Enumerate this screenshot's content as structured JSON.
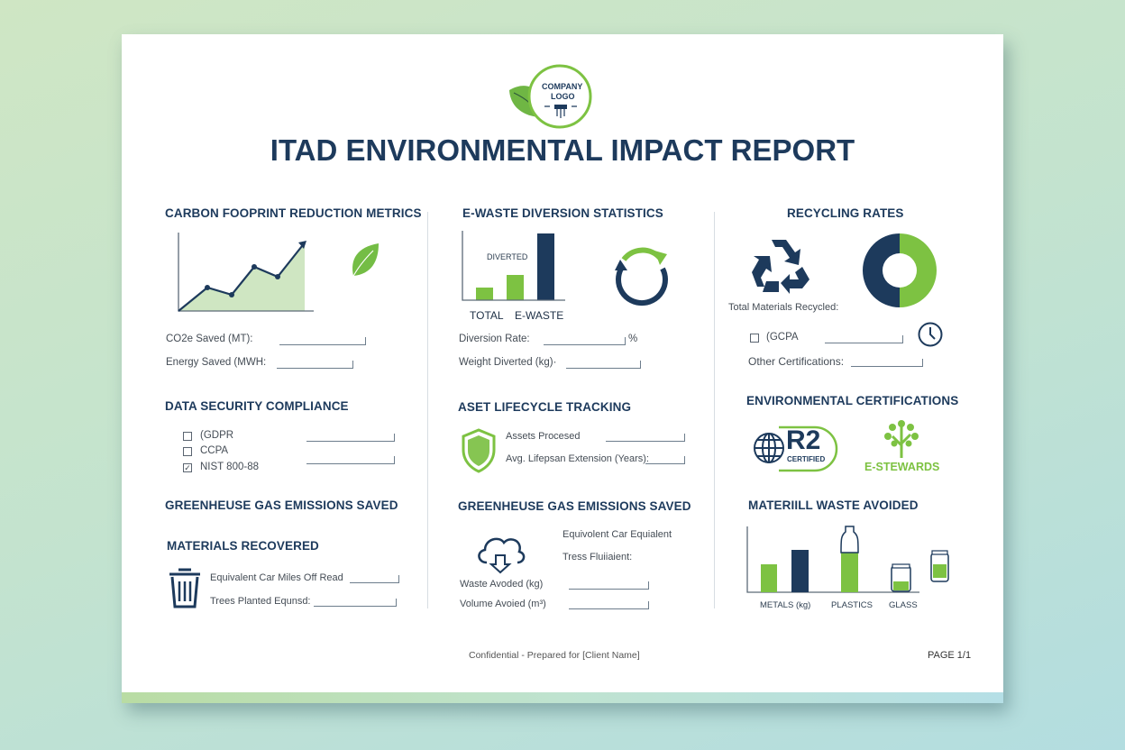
{
  "title": "ITAD ENVIRONMENTAL IMPACT REPORT",
  "logo": {
    "text_line1": "COMPANY",
    "text_line2": "LOGO"
  },
  "colors": {
    "navy": "#1d3a5c",
    "green": "#7dc242"
  },
  "col1": {
    "carbon": {
      "heading": "CARBON FOOPRINT REDUCTION METRICS",
      "co2_label": "CO2e Saved (MT):",
      "energy_label": "Energy Saved (MWH:"
    },
    "security": {
      "heading": "DATA SECURITY COMPLIANCE",
      "items": [
        {
          "label": "(GDPR",
          "checked": false
        },
        {
          "label": "CCPA",
          "checked": false
        },
        {
          "label": "NIST 800-88",
          "checked": true
        }
      ]
    },
    "ghg": {
      "heading": "GREENHEUSE GAS EMISSIONS SAVED"
    },
    "materials": {
      "heading": "MATERIALS RECOVERED",
      "car_label": "Equivalent Car Miles Off Read",
      "trees_label": "Trees Planted Equnsd:"
    }
  },
  "col2": {
    "ewaste": {
      "heading": "E-WASTE DIVERSION STATISTICS",
      "bar_label": "DIVERTED",
      "x_labels": [
        "TOTAL",
        "E-WASTE"
      ],
      "rate_label": "Diversion Rate:",
      "rate_unit": "%",
      "weight_label": "Weight Diverted (kg)·"
    },
    "asset": {
      "heading": "ASET LIFECYCLE TRACKING",
      "processed_label": "Assets Procesed",
      "lifespan_label": "Avg. Lifepsan Extension (Years):"
    },
    "ghg": {
      "heading": "GREENHEUSE GAS EMISSIONS SAVED",
      "car_label": "Equivolent Car Equialent",
      "trees_label": "Tress Fluiiaient:",
      "waste_label": "Waste Avoded (kg)",
      "volume_label": "Volume Avoied (m³)"
    }
  },
  "col3": {
    "recycling": {
      "heading": "RECYCLING RATES",
      "total_label": "Total Materials Recycled:",
      "checkbox_label": "(GCPA",
      "other_label": "Other Certifications:"
    },
    "certs": {
      "heading": "ENVIRONMENTAL CERTIFICATIONS",
      "r2_main": "R2",
      "r2_sub": "CERTIFIED",
      "estewards": "E-STEWARDS"
    },
    "waste": {
      "heading": "MATERIILL WASTE AVOIDED",
      "x_labels": [
        "METALS (kg)",
        "PLASTICS",
        "GLASS"
      ]
    }
  },
  "footer": {
    "confidential": "Confidential - Prepared for [Client Name]",
    "page": "PAGE 1/1"
  }
}
